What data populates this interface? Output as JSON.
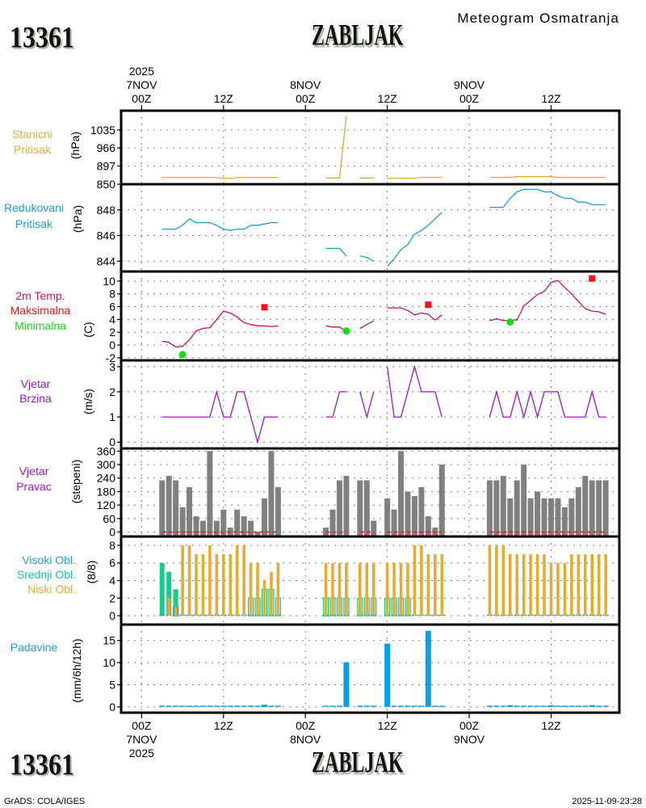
{
  "header": {
    "station_id": "13361",
    "station_name": "ZABLJAK",
    "subtitle": "Meteogram Osmatranja"
  },
  "footer": {
    "station_id": "13361",
    "station_name": "ZABLJAK",
    "credit": "GrADS: COLA/IGES",
    "timestamp": "2025-11-09-23:28"
  },
  "x_axis": {
    "unit": "hours since 2025-11-07 00Z",
    "xlim": [
      -3,
      70
    ],
    "ticks": [
      {
        "hour": 0,
        "top": [
          "2025",
          "7NOV",
          "00Z"
        ],
        "bottom": [
          "00Z",
          "7NOV",
          "2025"
        ]
      },
      {
        "hour": 12,
        "top": [
          "12Z"
        ],
        "bottom": [
          "12Z"
        ]
      },
      {
        "hour": 24,
        "top": [
          "8NOV",
          "00Z"
        ],
        "bottom": [
          "00Z",
          "8NOV"
        ]
      },
      {
        "hour": 36,
        "top": [
          "12Z"
        ],
        "bottom": [
          "12Z"
        ]
      },
      {
        "hour": 48,
        "top": [
          "9NOV",
          "00Z"
        ],
        "bottom": [
          "00Z",
          "9NOV"
        ]
      },
      {
        "hour": 60,
        "top": [
          "12Z"
        ],
        "bottom": [
          "12Z"
        ]
      }
    ]
  },
  "colors": {
    "grid": "#808080",
    "frame": "#000000",
    "wind_dir_zero_line": "#E01E1E"
  },
  "chart_data": [
    {
      "id": "station-pressure",
      "type": "line",
      "labels": [
        {
          "text": "Stanicni",
          "color": "#E6AC3C"
        },
        {
          "text": "Pritisak",
          "color": "#E6AC3C"
        }
      ],
      "ylabel": "(hPa)",
      "ylim": [
        827,
        1109
      ],
      "yticks": [
        897,
        966,
        1035
      ],
      "grid": true,
      "series": [
        {
          "name": "Stanicni Pritisak",
          "color": "#E6A832",
          "x_start": 3,
          "x_step": 1,
          "values": [
            853,
            853,
            853,
            853,
            853,
            853,
            853,
            853,
            853,
            850,
            850,
            853,
            853,
            853,
            853,
            853,
            853,
            853,
            null,
            null,
            null,
            null,
            null,
            null,
            851,
            851,
            851,
            1089,
            null,
            851,
            851,
            851,
            null,
            850,
            850,
            850,
            850,
            850,
            853,
            853,
            853,
            853,
            null,
            null,
            null,
            null,
            null,
            null,
            853,
            853,
            853,
            853,
            856,
            856,
            856,
            856,
            856,
            856,
            853,
            853,
            853,
            853,
            853,
            853,
            853,
            853
          ]
        }
      ]
    },
    {
      "id": "reduced-pressure",
      "type": "line",
      "labels": [
        {
          "text": "Redukovani",
          "color": "#1E9ED8"
        },
        {
          "text": "Pritisak",
          "color": "#1E9ED8"
        }
      ],
      "ylabel": "(hPa)",
      "ylim": [
        843.2,
        850.0
      ],
      "yticks": [
        844,
        846,
        848,
        850
      ],
      "grid": true,
      "series": [
        {
          "name": "Redukovani Pritisak",
          "color": "#1E9ED8",
          "x_start": 3,
          "x_step": 1,
          "values": [
            846.5,
            846.5,
            846.5,
            846.8,
            847.3,
            847.0,
            847.0,
            847.0,
            846.8,
            846.5,
            846.4,
            846.5,
            846.5,
            846.8,
            846.8,
            846.9,
            847.0,
            847.0,
            null,
            null,
            null,
            null,
            null,
            null,
            845.0,
            845.0,
            845.0,
            844.4,
            null,
            844.4,
            844.3,
            844.0,
            null,
            843.6,
            844.2,
            844.9,
            845.3,
            846.1,
            846.4,
            846.8,
            847.3,
            847.8,
            null,
            null,
            null,
            null,
            null,
            null,
            848.2,
            848.2,
            848.2,
            848.9,
            849.4,
            849.6,
            849.6,
            849.6,
            849.4,
            849.4,
            849.1,
            848.9,
            848.9,
            848.6,
            848.6,
            848.4,
            848.4,
            848.4
          ]
        }
      ]
    },
    {
      "id": "temperature",
      "type": "line",
      "labels": [
        {
          "text": "2m Temp.",
          "color": "#C8145A"
        },
        {
          "text": "Maksimalna",
          "color": "#F01414"
        },
        {
          "text": "Minimalna",
          "color": "#14DC14"
        }
      ],
      "ylabel": "(C)",
      "ylim": [
        -2.4,
        11.5
      ],
      "yticks": [
        -2,
        0,
        2,
        4,
        6,
        8,
        10
      ],
      "grid": true,
      "series": [
        {
          "name": "2m Temp.",
          "color": "#C8145A",
          "x_start": 3,
          "x_step": 1,
          "values": [
            0.6,
            0.4,
            -0.3,
            -0.2,
            0.8,
            2.2,
            2.6,
            2.7,
            4.0,
            5.3,
            5.0,
            4.4,
            3.5,
            3.2,
            3.0,
            3.0,
            2.9,
            3.0,
            null,
            null,
            null,
            null,
            null,
            null,
            3.0,
            2.8,
            2.8,
            2.1,
            null,
            2.6,
            3.2,
            3.8,
            null,
            5.8,
            5.8,
            5.8,
            5.4,
            4.7,
            5.0,
            4.8,
            3.9,
            4.7,
            null,
            null,
            null,
            null,
            null,
            null,
            3.8,
            4.1,
            3.8,
            3.9,
            3.9,
            6.1,
            7.0,
            7.9,
            8.4,
            9.8,
            10.1,
            9.0,
            8.0,
            6.8,
            5.7,
            5.3,
            5.2,
            4.8
          ]
        }
      ],
      "markers": [
        {
          "name": "Maksimalna",
          "shape": "square",
          "color": "#F01414",
          "points": [
            {
              "hour": 18,
              "value": 5.9
            },
            {
              "hour": 42,
              "value": 6.3
            },
            {
              "hour": 66,
              "value": 10.4
            }
          ]
        },
        {
          "name": "Minimalna",
          "shape": "circle",
          "color": "#14DC14",
          "points": [
            {
              "hour": 6,
              "value": -1.5
            },
            {
              "hour": 30,
              "value": 2.2
            },
            {
              "hour": 54,
              "value": 3.6
            }
          ]
        }
      ]
    },
    {
      "id": "wind-speed",
      "type": "line",
      "labels": [
        {
          "text": "Vjetar",
          "color": "#A014C8"
        },
        {
          "text": "Brzina",
          "color": "#A014C8"
        }
      ],
      "ylabel": "(m/s)",
      "ylim": [
        -0.25,
        3.25
      ],
      "yticks": [
        0,
        1,
        2,
        3
      ],
      "grid": true,
      "series": [
        {
          "name": "Vjetar Brzina",
          "color": "#A014C8",
          "x_start": 3,
          "x_step": 1,
          "values": [
            1,
            1,
            1,
            1,
            1,
            1,
            1,
            1,
            2,
            1,
            1,
            2,
            2,
            1,
            0,
            1,
            1,
            1,
            null,
            null,
            null,
            null,
            null,
            null,
            1,
            1,
            2,
            2,
            null,
            2,
            1,
            2,
            null,
            3,
            1,
            1,
            2,
            3,
            2,
            2,
            2,
            1,
            null,
            null,
            null,
            null,
            null,
            null,
            1,
            2,
            1,
            1,
            2,
            1,
            2,
            1,
            2,
            2,
            2,
            1,
            1,
            1,
            1,
            2,
            1,
            1
          ]
        }
      ]
    },
    {
      "id": "wind-direction",
      "type": "bar",
      "labels": [
        {
          "text": "Vjetar",
          "color": "#A014C8"
        },
        {
          "text": "Pravac",
          "color": "#A014C8"
        }
      ],
      "ylabel": "(stepeni)",
      "ylim": [
        -20,
        372
      ],
      "yticks": [
        0,
        60,
        120,
        180,
        240,
        300,
        360
      ],
      "grid": true,
      "series": [
        {
          "name": "Vjetar Pravac",
          "color": "#808080",
          "x_start": 3,
          "x_step": 1,
          "values": [
            230,
            250,
            230,
            110,
            200,
            70,
            50,
            360,
            50,
            100,
            20,
            100,
            70,
            50,
            0,
            150,
            360,
            200,
            null,
            null,
            null,
            null,
            null,
            null,
            20,
            100,
            230,
            250,
            null,
            230,
            230,
            50,
            null,
            150,
            100,
            360,
            180,
            160,
            200,
            70,
            20,
            300,
            null,
            null,
            null,
            null,
            null,
            null,
            230,
            230,
            250,
            150,
            230,
            300,
            150,
            180,
            150,
            150,
            150,
            110,
            150,
            200,
            250,
            230,
            230,
            230
          ]
        }
      ]
    },
    {
      "id": "cloud-cover",
      "type": "bar",
      "labels": [
        {
          "text": "Visoki Obl.",
          "color": "#1EA0DC"
        },
        {
          "text": "Srednji Obl.",
          "color": "#14CC8C"
        },
        {
          "text": "Niski Obl.",
          "color": "#E6AC30"
        }
      ],
      "ylabel": "(8/8)",
      "ylim": [
        -1,
        9
      ],
      "yticks": [
        0,
        2,
        4,
        6,
        8
      ],
      "grid": true,
      "series": [
        {
          "name": "Srednji Obl.",
          "role": "mid",
          "color": "#14CC8C",
          "x_start": 3,
          "x_step": 1,
          "values": [
            6,
            5,
            3,
            0,
            0,
            0,
            0,
            0,
            0,
            0,
            0,
            0,
            0,
            2,
            2,
            3,
            3,
            2,
            null,
            null,
            null,
            null,
            null,
            null,
            2,
            2,
            2,
            2,
            null,
            2,
            2,
            2,
            null,
            2,
            2,
            2,
            2,
            0,
            0,
            0,
            0,
            0,
            null,
            null,
            null,
            null,
            null,
            null,
            0,
            0,
            0,
            0,
            0,
            0,
            0,
            0,
            0,
            0,
            0,
            0,
            0,
            0,
            0,
            0,
            0,
            0
          ]
        },
        {
          "name": "Visoki Obl.",
          "role": "high",
          "color": "#1EA0DC",
          "x_start": 3,
          "x_step": 1,
          "values": [
            0,
            0,
            1,
            0,
            0,
            0,
            0,
            0,
            0,
            0,
            0,
            0,
            0,
            0,
            0,
            0,
            0,
            0,
            null,
            null,
            null,
            null,
            null,
            null,
            0,
            0,
            0,
            0,
            null,
            0,
            0,
            0,
            null,
            0,
            0,
            0,
            0,
            0,
            0,
            0,
            0,
            0,
            null,
            null,
            null,
            null,
            null,
            null,
            0,
            0,
            0,
            0,
            0,
            0,
            0,
            0,
            0,
            0,
            0,
            0,
            0,
            0,
            0,
            0,
            0,
            0
          ]
        },
        {
          "name": "Niski Obl.",
          "role": "low",
          "color": "#E6AC30",
          "x_start": 3,
          "x_step": 1,
          "values": [
            0,
            2,
            1,
            8,
            8,
            7,
            7,
            8,
            7,
            7,
            7,
            8,
            8,
            6,
            6,
            4,
            5,
            6,
            null,
            null,
            null,
            null,
            null,
            null,
            6,
            6,
            6,
            6,
            null,
            6,
            6,
            6,
            null,
            6,
            6,
            6,
            6,
            8,
            8,
            7,
            7,
            7,
            null,
            null,
            null,
            null,
            null,
            null,
            8,
            8,
            8,
            7,
            7,
            7,
            7,
            7,
            7,
            6,
            6,
            6,
            7,
            7,
            7,
            7,
            7,
            7
          ]
        }
      ]
    },
    {
      "id": "precipitation",
      "type": "bar",
      "labels": [
        {
          "text": "Padavine",
          "color": "#1E9ED8"
        }
      ],
      "ylabel": "(mm/6h/12h)",
      "ylim": [
        -1.3,
        18.6
      ],
      "yticks": [
        0,
        5,
        10,
        15
      ],
      "grid": true,
      "series": [
        {
          "name": "Padavine",
          "color": "#0AA0E6",
          "x_start": 3,
          "x_step": 1,
          "values": [
            0,
            0,
            0,
            0,
            0,
            0,
            0,
            0,
            0,
            0,
            0,
            0,
            0,
            0,
            0,
            0.5,
            0,
            0,
            null,
            null,
            null,
            null,
            null,
            null,
            0,
            0,
            0,
            10.1,
            null,
            0,
            0,
            0,
            null,
            14.3,
            0,
            0,
            0,
            0,
            0,
            17.2,
            0,
            0,
            null,
            null,
            null,
            null,
            null,
            null,
            0,
            0,
            0,
            0.4,
            0,
            0,
            0,
            0,
            0,
            0.4,
            0,
            0,
            0,
            0,
            0,
            0.4,
            0,
            0
          ]
        }
      ]
    }
  ]
}
